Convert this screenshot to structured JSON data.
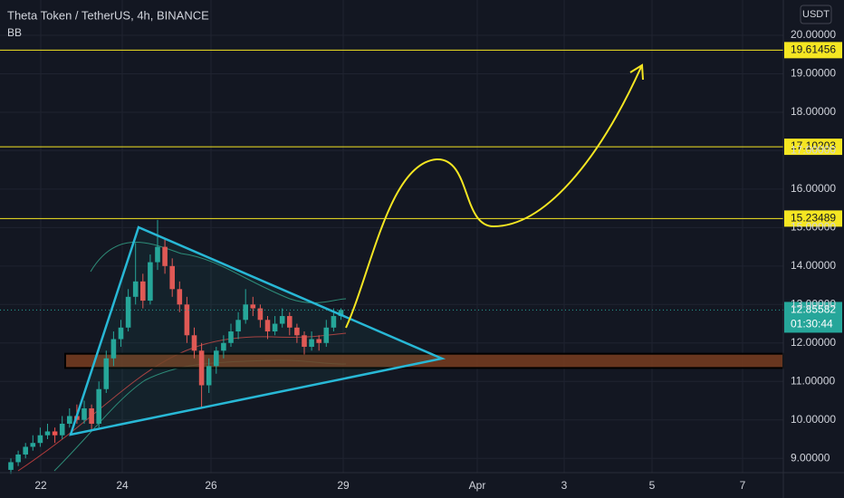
{
  "header": {
    "symbol": "Theta Token / TetherUS, 4h, BINANCE",
    "indicator": "BB",
    "currency": "USDT"
  },
  "chart_data": {
    "type": "candlestick",
    "ylim": [
      8.628,
      20.918
    ],
    "yticks": [
      {
        "value": 20,
        "label": "20.00000"
      },
      {
        "value": 19,
        "label": "19.00000"
      },
      {
        "value": 18,
        "label": "18.00000"
      },
      {
        "value": 17,
        "label": "17.00000"
      },
      {
        "value": 16,
        "label": "16.00000"
      },
      {
        "value": 15,
        "label": "15.00000"
      },
      {
        "value": 14,
        "label": "14.00000"
      },
      {
        "value": 13,
        "label": "13.00000"
      },
      {
        "value": 12,
        "label": "12.00000"
      },
      {
        "value": 11,
        "label": "11.00000"
      },
      {
        "value": 10,
        "label": "10.00000"
      },
      {
        "value": 9,
        "label": "9.00000"
      }
    ],
    "xtick_labels": [
      "22",
      "24",
      "26",
      "29",
      "Apr",
      "3",
      "5",
      "7"
    ],
    "open": [
      8.7,
      8.9,
      9.1,
      9.3,
      9.4,
      9.6,
      9.7,
      9.6,
      9.9,
      10.1,
      10.0,
      10.3,
      9.9,
      10.8,
      11.6,
      12.1,
      12.4,
      13.2,
      13.6,
      13.1,
      14.1,
      14.5,
      14.0,
      13.4,
      13.0,
      12.2,
      11.8,
      10.9,
      11.4,
      11.8,
      12.0,
      12.3,
      12.6,
      13.0,
      12.9,
      12.6,
      12.3,
      12.5,
      12.7,
      12.4,
      12.2,
      11.9,
      12.1,
      12.0,
      12.4,
      12.7
    ],
    "high": [
      9.0,
      9.2,
      9.4,
      9.6,
      9.8,
      9.9,
      9.8,
      10.1,
      10.3,
      10.4,
      10.5,
      10.4,
      11.0,
      11.8,
      12.3,
      12.6,
      13.4,
      14.6,
      13.8,
      14.3,
      15.2,
      14.7,
      14.2,
      13.6,
      13.2,
      12.4,
      12.0,
      11.6,
      11.9,
      12.2,
      12.5,
      12.8,
      13.4,
      13.2,
      13.0,
      12.7,
      12.7,
      12.9,
      12.8,
      12.5,
      12.3,
      12.3,
      12.2,
      12.6,
      12.9,
      12.9
    ],
    "low": [
      8.6,
      8.8,
      9.0,
      9.2,
      9.3,
      9.5,
      9.4,
      9.5,
      9.8,
      9.9,
      9.9,
      9.7,
      9.8,
      10.7,
      11.4,
      11.9,
      12.3,
      13.0,
      12.9,
      13.0,
      13.9,
      13.8,
      13.2,
      12.8,
      12.0,
      11.6,
      10.3,
      10.7,
      11.2,
      11.6,
      11.9,
      12.1,
      12.5,
      12.7,
      12.4,
      12.1,
      12.2,
      12.4,
      12.2,
      12.0,
      11.7,
      11.8,
      11.8,
      11.9,
      12.3,
      12.6
    ],
    "close": [
      8.9,
      9.1,
      9.3,
      9.4,
      9.6,
      9.7,
      9.6,
      9.9,
      10.1,
      10.0,
      10.3,
      9.9,
      10.8,
      11.6,
      12.1,
      12.4,
      13.2,
      13.6,
      13.1,
      14.1,
      14.5,
      14.0,
      13.4,
      13.0,
      12.2,
      11.8,
      10.9,
      11.4,
      11.8,
      12.0,
      12.3,
      12.6,
      13.0,
      12.9,
      12.6,
      12.3,
      12.5,
      12.7,
      12.4,
      12.2,
      11.9,
      12.1,
      12.0,
      12.4,
      12.7,
      12.86
    ],
    "up_color": "#26a69a",
    "down_color": "#ef5350",
    "levels": [
      {
        "value": 19.61456,
        "label": "19.61456"
      },
      {
        "value": 17.10203,
        "label": "17.10203"
      },
      {
        "value": 15.23489,
        "label": "15.23489"
      }
    ],
    "level_color": "#f5e622",
    "zone": [
      11.35,
      11.72
    ],
    "last_price": {
      "value": 12.85582,
      "label": "12.85582",
      "countdown": "01:30:44"
    }
  }
}
